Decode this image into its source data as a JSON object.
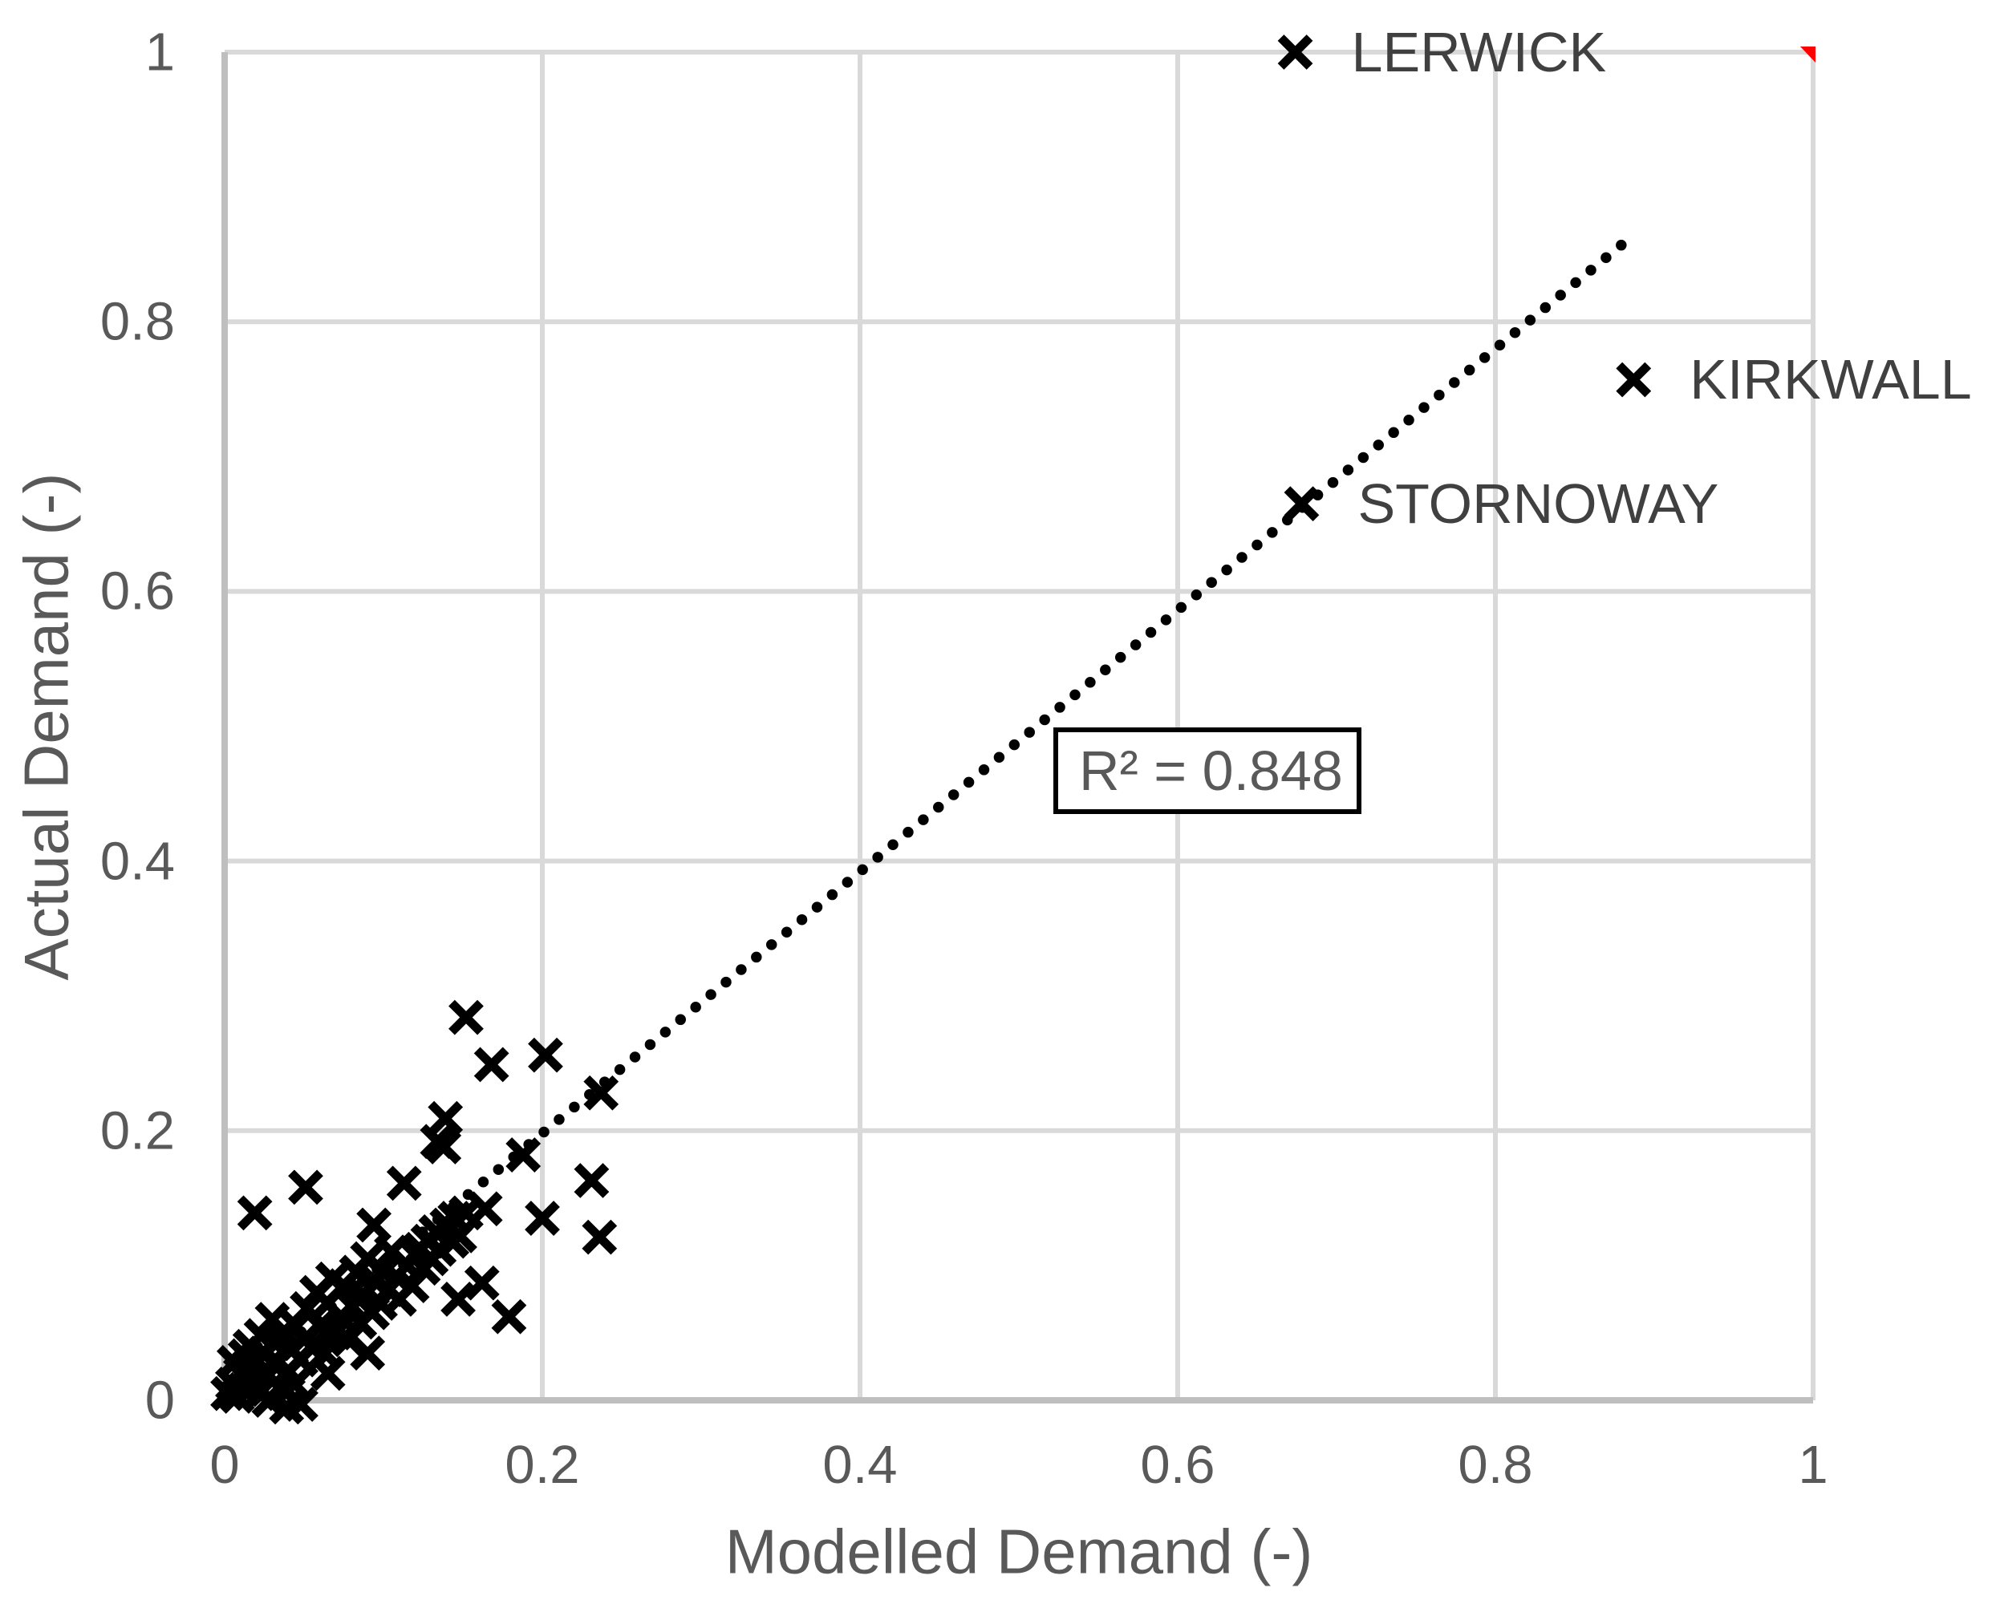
{
  "chart_data": {
    "type": "scatter",
    "title": "",
    "xlabel": "Modelled Demand (-)",
    "ylabel": "Actual Demand (-)",
    "xlim": [
      0,
      1
    ],
    "ylim": [
      0,
      1
    ],
    "grid": true,
    "legend": "none",
    "marker_glyph": "x",
    "x_ticks": [
      "0",
      "0.2",
      "0.4",
      "0.6",
      "0.8",
      "1"
    ],
    "y_ticks": [
      "0",
      "0.2",
      "0.4",
      "0.6",
      "0.8",
      "1"
    ],
    "x_tick_values": [
      0,
      0.2,
      0.4,
      0.6,
      0.8,
      1
    ],
    "y_tick_values": [
      0,
      0.2,
      0.4,
      0.6,
      0.8,
      1
    ],
    "labeled_points": [
      {
        "label": "LERWICK",
        "x": 0.674,
        "y": 1.0
      },
      {
        "label": "KIRKWALL",
        "x": 0.887,
        "y": 0.757
      },
      {
        "label": "STORNOWAY",
        "x": 0.678,
        "y": 0.665
      }
    ],
    "points": [
      [
        0.152,
        0.284
      ],
      [
        0.168,
        0.249
      ],
      [
        0.202,
        0.256
      ],
      [
        0.237,
        0.228
      ],
      [
        0.139,
        0.209
      ],
      [
        0.134,
        0.192
      ],
      [
        0.188,
        0.182
      ],
      [
        0.231,
        0.163
      ],
      [
        0.236,
        0.121
      ],
      [
        0.2,
        0.135
      ],
      [
        0.164,
        0.142
      ],
      [
        0.152,
        0.139
      ],
      [
        0.147,
        0.075
      ],
      [
        0.162,
        0.087
      ],
      [
        0.179,
        0.062
      ],
      [
        0.113,
        0.161
      ],
      [
        0.051,
        0.158
      ],
      [
        0.019,
        0.139
      ],
      [
        0.094,
        0.13
      ],
      [
        0.138,
        0.188
      ],
      [
        0.052,
        0.068
      ],
      [
        0.055,
        0.04
      ],
      [
        0.058,
        0.08
      ],
      [
        0.06,
        0.055
      ],
      [
        0.063,
        0.035
      ],
      [
        0.065,
        0.072
      ],
      [
        0.068,
        0.09
      ],
      [
        0.07,
        0.05
      ],
      [
        0.073,
        0.062
      ],
      [
        0.075,
        0.085
      ],
      [
        0.078,
        0.045
      ],
      [
        0.08,
        0.07
      ],
      [
        0.083,
        0.095
      ],
      [
        0.085,
        0.058
      ],
      [
        0.088,
        0.078
      ],
      [
        0.09,
        0.105
      ],
      [
        0.093,
        0.065
      ],
      [
        0.095,
        0.088
      ],
      [
        0.098,
        0.072
      ],
      [
        0.1,
        0.095
      ],
      [
        0.103,
        0.082
      ],
      [
        0.105,
        0.11
      ],
      [
        0.108,
        0.092
      ],
      [
        0.11,
        0.075
      ],
      [
        0.115,
        0.1
      ],
      [
        0.118,
        0.085
      ],
      [
        0.12,
        0.108
      ],
      [
        0.123,
        0.112
      ],
      [
        0.125,
        0.098
      ],
      [
        0.128,
        0.118
      ],
      [
        0.13,
        0.105
      ],
      [
        0.133,
        0.125
      ],
      [
        0.135,
        0.112
      ],
      [
        0.14,
        0.13
      ],
      [
        0.143,
        0.118
      ],
      [
        0.145,
        0.135
      ],
      [
        0.148,
        0.122
      ],
      [
        0.002,
        0.005
      ],
      [
        0.005,
        0.012
      ],
      [
        0.008,
        0.003
      ],
      [
        0.01,
        0.02
      ],
      [
        0.012,
        0.008
      ],
      [
        0.015,
        0.025
      ],
      [
        0.018,
        0.014
      ],
      [
        0.02,
        0.03
      ],
      [
        0.022,
        0.005
      ],
      [
        0.025,
        0.035
      ],
      [
        0.027,
        0.018
      ],
      [
        0.03,
        0.028
      ],
      [
        0.032,
        0.042
      ],
      [
        0.035,
        0.01
      ],
      [
        0.038,
        0.05
      ],
      [
        0.04,
        0.022
      ],
      [
        0.042,
        0.038
      ],
      [
        0.045,
        0.055
      ],
      [
        0.048,
        0.03
      ],
      [
        0.05,
        0.045
      ],
      [
        0.016,
        0.04
      ],
      [
        0.006,
        0.028
      ],
      [
        0.03,
        0.06
      ],
      [
        0.039,
        -0.005
      ],
      [
        0.023,
        0.048
      ],
      [
        0.028,
        0.0
      ],
      [
        0.048,
        -0.003
      ],
      [
        0.013,
        0.033
      ],
      [
        0.034,
        0.047
      ],
      [
        0.044,
        0.012
      ],
      [
        0.065,
        0.02
      ],
      [
        0.09,
        0.035
      ]
    ],
    "trendline": {
      "style": "dotted",
      "slope": 0.97,
      "intercept": 0.004,
      "x_start": 0.01,
      "x_end": 0.886,
      "r_squared": 0.848,
      "r_squared_label": "R² = 0.848"
    },
    "colors": {
      "marker": "#000000",
      "trendline": "#000000",
      "gridline": "#d9d9d9",
      "axis_line": "#bfbfbf",
      "tick_text": "#595959",
      "label_text": "#404040",
      "annotation_border": "#000000",
      "corner_flag": "#ff0000",
      "background": "#ffffff"
    }
  }
}
